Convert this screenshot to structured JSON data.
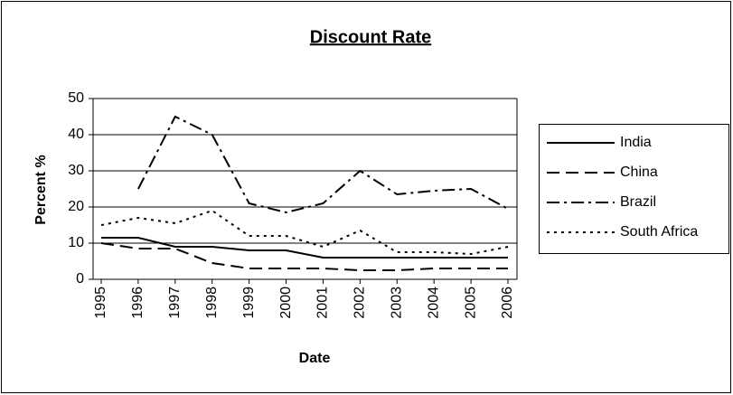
{
  "chart_data": {
    "type": "line",
    "title": "Discount Rate",
    "x_label": "Date",
    "y_label": "Percent %",
    "categories": [
      "1995",
      "1996",
      "1997",
      "1998",
      "1999",
      "2000",
      "2001",
      "2002",
      "2003",
      "2004",
      "2005",
      "2006"
    ],
    "series": [
      {
        "name": "India",
        "color": "#000000",
        "dash": "solid",
        "values": [
          11.5,
          11.5,
          9,
          9,
          8,
          8,
          6,
          6,
          6,
          6,
          6,
          6
        ]
      },
      {
        "name": "China",
        "color": "#000000",
        "dash": "dash",
        "values": [
          10,
          8.5,
          8.5,
          4.5,
          3,
          3,
          3,
          2.5,
          2.5,
          3,
          3,
          3
        ]
      },
      {
        "name": "Brazil",
        "color": "#000000",
        "dash": "dash-dot",
        "values": [
          null,
          25,
          45,
          40,
          21,
          18.5,
          21,
          30,
          23.5,
          24.5,
          25,
          19.5
        ]
      },
      {
        "name": "South Africa",
        "color": "#000000",
        "dash": "dot",
        "values": [
          15,
          17,
          15.5,
          19,
          12,
          12,
          9,
          13.5,
          7.5,
          7.5,
          7,
          9
        ]
      }
    ],
    "ylim": [
      0,
      50
    ],
    "yticks": [
      0,
      10,
      20,
      30,
      40,
      50
    ],
    "grid": true,
    "legend": "right"
  }
}
